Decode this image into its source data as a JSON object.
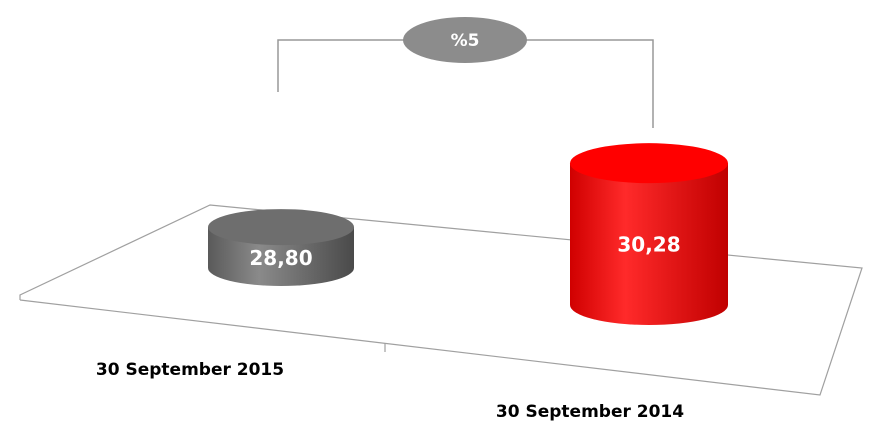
{
  "chart_data": {
    "type": "cylinder",
    "categories": [
      "30 September 2015",
      "30 September 2014"
    ],
    "values": [
      28.8,
      30.28
    ],
    "value_labels": [
      "28,80",
      "30,28"
    ],
    "colors": [
      "#707070",
      "#ff0000"
    ],
    "ylim": [
      28.2,
      30.4
    ],
    "annotation": "%5"
  }
}
